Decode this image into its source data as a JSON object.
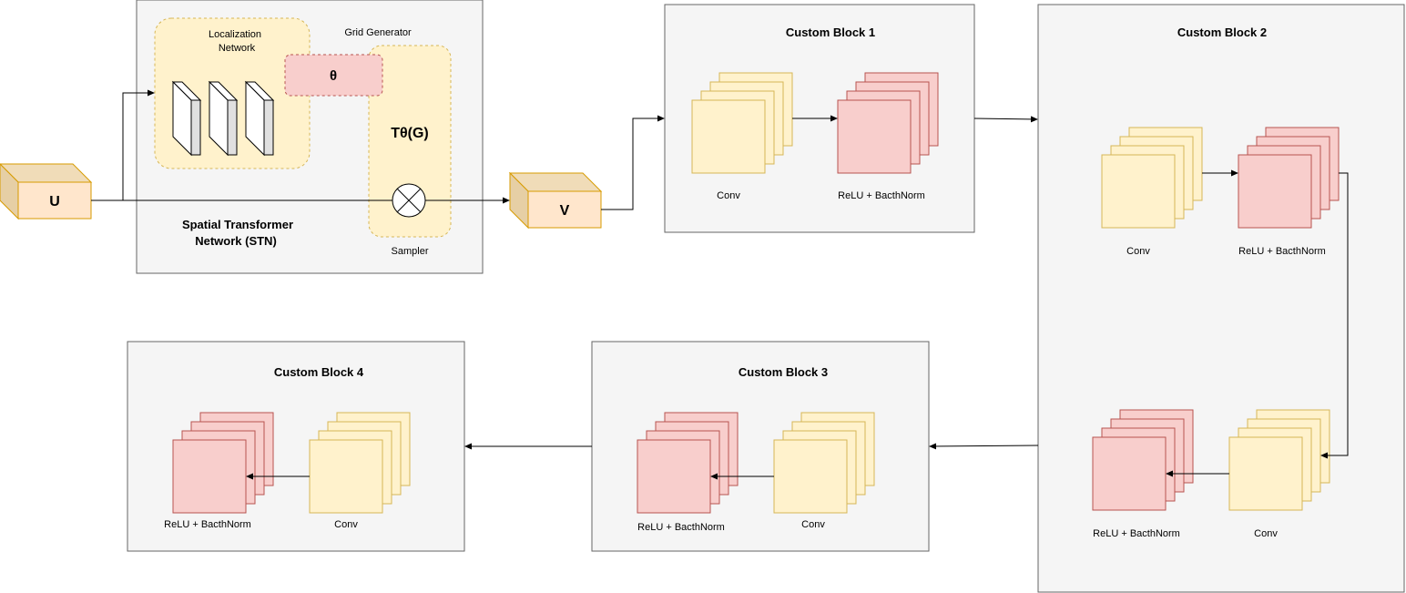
{
  "input_label": "U",
  "output_label": "V",
  "stn": {
    "title_line1": "Spatial Transformer",
    "title_line2": "Network (STN)",
    "localization_line1": "Localization",
    "localization_line2": "Network",
    "grid_generator": "Grid Generator",
    "theta": "θ",
    "transform": "Tθ(G)",
    "sampler": "Sampler"
  },
  "blocks": [
    {
      "title": "Custom Block 1",
      "conv_label": "Conv",
      "relu_label": "ReLU + BacthNorm"
    },
    {
      "title": "Custom Block 2",
      "conv_label": "Conv",
      "relu_label": "ReLU + BacthNorm",
      "conv2_label": "Conv",
      "relu2_label": "ReLU + BacthNorm"
    },
    {
      "title": "Custom Block 3",
      "conv_label": "Conv",
      "relu_label": "ReLU + BacthNorm"
    },
    {
      "title": "Custom Block 4",
      "conv_label": "Conv",
      "relu_label": "ReLU + BacthNorm"
    }
  ],
  "colors": {
    "conv_fill": "#fff2cc",
    "relu_fill": "#f8cecc",
    "cube_fill": "#ffe6cc",
    "panel_fill": "#f5f5f5"
  }
}
